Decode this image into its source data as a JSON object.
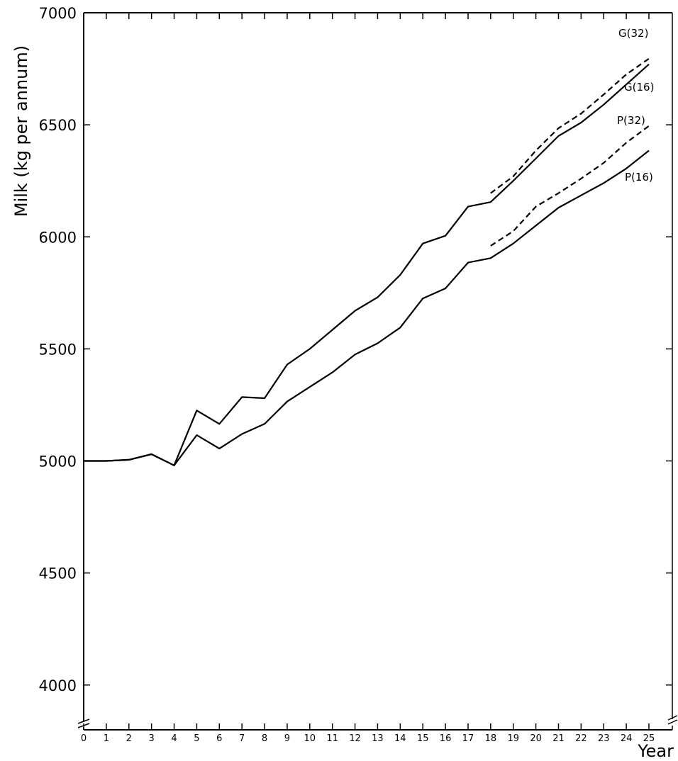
{
  "chart_data": {
    "type": "line",
    "title": "",
    "xlabel": "Year",
    "ylabel": "Milk (kg per annum)",
    "xlim": [
      0,
      26
    ],
    "ylim": [
      3800,
      7000
    ],
    "x_ticks": [
      "0",
      "1",
      "2",
      "3",
      "4",
      "5",
      "6",
      "7",
      "8",
      "9",
      "10",
      "11",
      "12",
      "13",
      "14",
      "15",
      "16",
      "17",
      "18",
      "19",
      "20",
      "21",
      "22",
      "23",
      "24",
      "25"
    ],
    "y_ticks": [
      "4000",
      "4500",
      "5000",
      "5500",
      "6000",
      "6500",
      "7000"
    ],
    "grid": false,
    "axis_break": true,
    "series": [
      {
        "name": "G(16)",
        "style": "solid",
        "x": [
          0,
          1,
          2,
          3,
          4,
          5,
          6,
          7,
          8,
          9,
          10,
          11,
          12,
          13,
          14,
          15,
          16,
          17,
          18,
          19,
          20,
          21,
          22,
          23,
          24,
          25
        ],
        "y": [
          5000,
          5000,
          5005,
          5030,
          4980,
          5225,
          5165,
          5285,
          5280,
          5430,
          5500,
          5585,
          5670,
          5730,
          5830,
          5970,
          6005,
          6135,
          6155,
          6250,
          6350,
          6450,
          6510,
          6590,
          6680,
          6770
        ]
      },
      {
        "name": "P(16)",
        "style": "solid",
        "x": [
          0,
          1,
          2,
          3,
          4,
          5,
          6,
          7,
          8,
          9,
          10,
          11,
          12,
          13,
          14,
          15,
          16,
          17,
          18,
          19,
          20,
          21,
          22,
          23,
          24,
          25
        ],
        "y": [
          5000,
          5000,
          5005,
          5030,
          4980,
          5115,
          5055,
          5120,
          5165,
          5265,
          5330,
          5395,
          5475,
          5525,
          5595,
          5725,
          5770,
          5885,
          5905,
          5970,
          6050,
          6130,
          6185,
          6240,
          6305,
          6385
        ]
      },
      {
        "name": "G(32)",
        "style": "dashed",
        "x": [
          18,
          19,
          20,
          21,
          22,
          23,
          24,
          25
        ],
        "y": [
          6195,
          6270,
          6385,
          6485,
          6550,
          6635,
          6725,
          6795
        ]
      },
      {
        "name": "P(32)",
        "style": "dashed",
        "x": [
          18,
          19,
          20,
          21,
          22,
          23,
          24,
          25
        ],
        "y": [
          5960,
          6025,
          6135,
          6195,
          6260,
          6330,
          6420,
          6495
        ]
      }
    ]
  }
}
